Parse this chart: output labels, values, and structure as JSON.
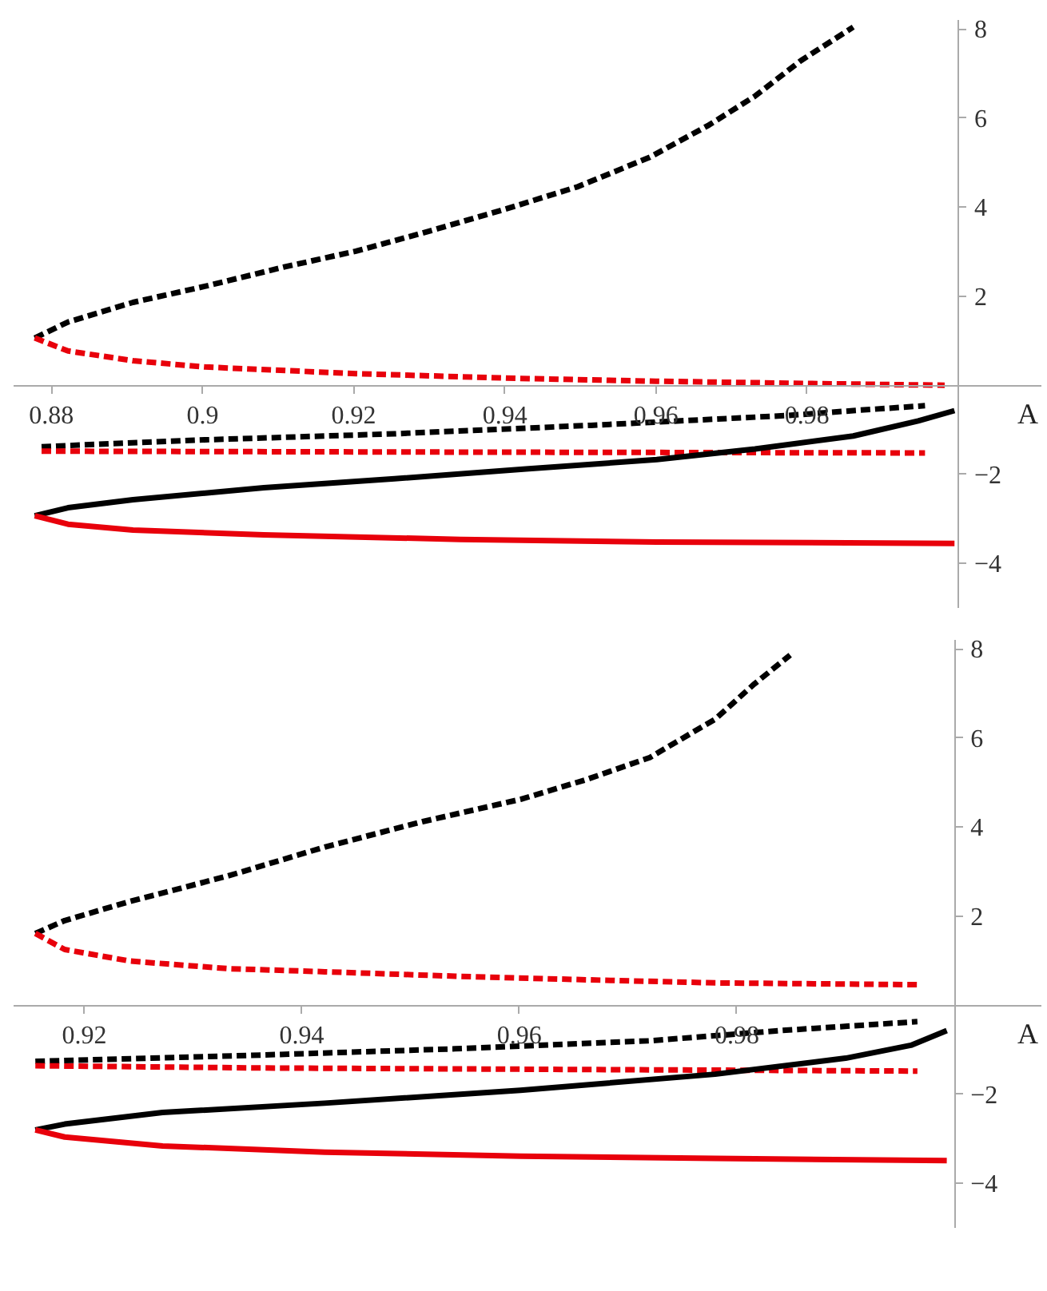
{
  "chart_data": [
    {
      "type": "line",
      "xlabel": "A",
      "xlim": [
        0.875,
        1.011
      ],
      "ylim": [
        -5,
        8.2
      ],
      "xticks": [
        0.88,
        0.9,
        0.92,
        0.94,
        0.96,
        0.98
      ],
      "yticks": [
        -4,
        -2,
        2,
        4,
        6,
        8
      ],
      "grid": false,
      "series": [
        {
          "color": "#000000",
          "line_style": "dashed",
          "x": [
            0.8778,
            0.8822,
            0.8908,
            0.9003,
            0.9107,
            0.9203,
            0.9298,
            0.9402,
            0.9497,
            0.9592,
            0.967,
            0.9731,
            0.9792,
            0.9861
          ],
          "values": [
            1.06,
            1.42,
            1.86,
            2.22,
            2.65,
            3.01,
            3.45,
            3.96,
            4.46,
            5.12,
            5.84,
            6.49,
            7.29,
            8.04
          ]
        },
        {
          "color": "#e8000b",
          "line_style": "dashed",
          "x": [
            0.8778,
            0.8822,
            0.8908,
            0.9003,
            0.9203,
            0.9402,
            0.96,
            0.98,
            0.9982
          ],
          "values": [
            1.06,
            0.77,
            0.55,
            0.41,
            0.26,
            0.16,
            0.09,
            0.04,
            0.0
          ]
        },
        {
          "color": "#000000",
          "line_style": "dashed",
          "x": [
            0.8787,
            0.8995,
            0.9254,
            0.9514,
            0.9774,
            0.9861,
            0.9956
          ],
          "values": [
            -1.38,
            -1.23,
            -1.09,
            -0.9,
            -0.68,
            -0.57,
            -0.46
          ]
        },
        {
          "color": "#e8000b",
          "line_style": "dashed",
          "x": [
            0.8787,
            0.93,
            0.9956
          ],
          "values": [
            -1.48,
            -1.5,
            -1.52
          ]
        },
        {
          "color": "#000000",
          "line_style": "solid",
          "x": [
            0.8778,
            0.8822,
            0.8908,
            0.9081,
            0.9254,
            0.9428,
            0.9601,
            0.9731,
            0.9861,
            0.9947,
            0.9995
          ],
          "values": [
            -2.93,
            -2.75,
            -2.57,
            -2.3,
            -2.1,
            -1.88,
            -1.67,
            -1.43,
            -1.14,
            -0.8,
            -0.57
          ]
        },
        {
          "color": "#e8000b",
          "line_style": "solid",
          "x": [
            0.8778,
            0.8822,
            0.8908,
            0.9081,
            0.9341,
            0.9601,
            0.9995
          ],
          "values": [
            -2.93,
            -3.12,
            -3.25,
            -3.36,
            -3.46,
            -3.52,
            -3.55
          ]
        }
      ]
    },
    {
      "type": "line",
      "xlabel": "A",
      "xlim": [
        0.9135,
        1.008
      ],
      "ylim": [
        -5,
        8.2
      ],
      "xticks": [
        0.92,
        0.94,
        0.96,
        0.98
      ],
      "yticks": [
        -4,
        -2,
        2,
        4,
        6,
        8
      ],
      "grid": false,
      "series": [
        {
          "color": "#000000",
          "line_style": "dashed",
          "x": [
            0.9155,
            0.9182,
            0.9242,
            0.9332,
            0.9421,
            0.9511,
            0.9601,
            0.9661,
            0.972,
            0.978,
            0.9816,
            0.9849
          ],
          "values": [
            1.61,
            1.9,
            2.33,
            2.9,
            3.55,
            4.12,
            4.62,
            5.06,
            5.56,
            6.42,
            7.21,
            7.86
          ]
        },
        {
          "color": "#e8000b",
          "line_style": "dashed",
          "x": [
            0.9155,
            0.9182,
            0.9242,
            0.9332,
            0.9421,
            0.9541,
            0.9661,
            0.978,
            0.9966
          ],
          "values": [
            1.61,
            1.25,
            0.99,
            0.82,
            0.75,
            0.65,
            0.57,
            0.5,
            0.46
          ]
        },
        {
          "color": "#000000",
          "line_style": "dashed",
          "x": [
            0.9155,
            0.9362,
            0.9541,
            0.972,
            0.984,
            0.9966
          ],
          "values": [
            -1.26,
            -1.12,
            -0.98,
            -0.8,
            -0.57,
            -0.37
          ]
        },
        {
          "color": "#e8000b",
          "line_style": "dashed",
          "x": [
            0.9155,
            0.9362,
            0.9966
          ],
          "values": [
            -1.36,
            -1.41,
            -1.48
          ]
        },
        {
          "color": "#000000",
          "line_style": "solid",
          "x": [
            0.9155,
            0.9182,
            0.9272,
            0.9421,
            0.9601,
            0.978,
            0.99,
            0.996,
            0.9993
          ],
          "values": [
            -2.8,
            -2.67,
            -2.41,
            -2.2,
            -1.91,
            -1.55,
            -1.19,
            -0.9,
            -0.57
          ]
        },
        {
          "color": "#e8000b",
          "line_style": "solid",
          "x": [
            0.9155,
            0.9182,
            0.9272,
            0.9421,
            0.9601,
            0.978,
            0.9993
          ],
          "values": [
            -2.8,
            -2.96,
            -3.16,
            -3.3,
            -3.39,
            -3.44,
            -3.49
          ]
        }
      ]
    }
  ]
}
